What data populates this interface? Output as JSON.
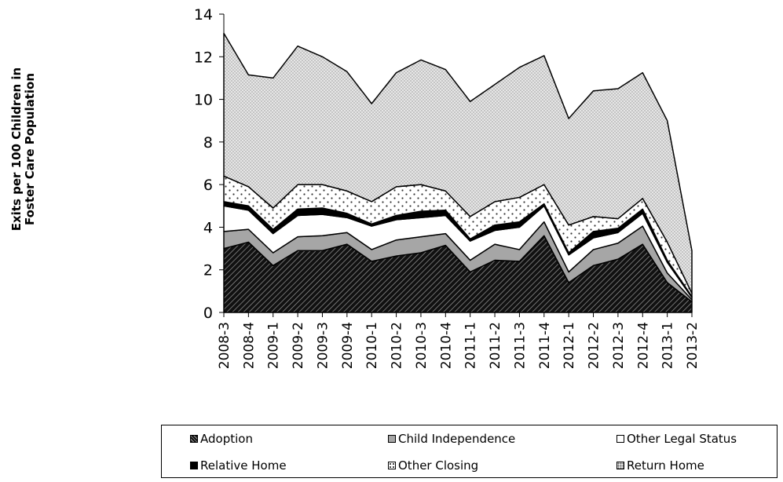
{
  "chart_data": {
    "type": "area",
    "stacked": true,
    "ylabel_lines": [
      "Exits per 100 Children in",
      "Foster Care Population"
    ],
    "ylim": [
      0,
      14
    ],
    "yticks": [
      0,
      2,
      4,
      6,
      8,
      10,
      12,
      14
    ],
    "grid": false,
    "legend_position": "bottom",
    "categories": [
      "2008-3",
      "2008-4",
      "2009-1",
      "2009-2",
      "2009-3",
      "2009-4",
      "2010-1",
      "2010-2",
      "2010-3",
      "2010-4",
      "2011-1",
      "2011-2",
      "2011-3",
      "2011-4",
      "2012-1",
      "2012-2",
      "2012-3",
      "2012-4",
      "2013-1",
      "2013-2"
    ],
    "series": [
      {
        "name": "Adoption",
        "pattern": "hatch-dark",
        "values": [
          3.0,
          3.3,
          2.2,
          2.9,
          2.9,
          3.2,
          2.4,
          2.65,
          2.8,
          3.15,
          1.9,
          2.45,
          2.4,
          3.6,
          1.4,
          2.2,
          2.5,
          3.2,
          1.4,
          0.5
        ]
      },
      {
        "name": "Child Independence",
        "pattern": "gray",
        "values": [
          0.8,
          0.6,
          0.6,
          0.65,
          0.7,
          0.55,
          0.55,
          0.75,
          0.75,
          0.55,
          0.55,
          0.75,
          0.55,
          0.65,
          0.5,
          0.75,
          0.75,
          0.85,
          0.45,
          0.1
        ]
      },
      {
        "name": "Other Legal Status",
        "pattern": "white",
        "values": [
          1.2,
          0.9,
          0.9,
          1.0,
          1.0,
          0.7,
          1.1,
          0.95,
          0.9,
          0.85,
          0.9,
          0.65,
          1.05,
          0.75,
          0.8,
          0.55,
          0.5,
          0.6,
          0.5,
          0.1
        ]
      },
      {
        "name": "Relative Home",
        "pattern": "black",
        "values": [
          0.2,
          0.2,
          0.2,
          0.3,
          0.3,
          0.2,
          0.1,
          0.2,
          0.3,
          0.25,
          0.1,
          0.25,
          0.25,
          0.1,
          0.1,
          0.3,
          0.2,
          0.2,
          0.1,
          0.05
        ]
      },
      {
        "name": "Other Closing",
        "pattern": "dots",
        "values": [
          1.2,
          0.9,
          1.0,
          1.15,
          1.1,
          1.05,
          1.05,
          1.35,
          1.25,
          0.9,
          1.05,
          1.1,
          1.15,
          0.9,
          1.3,
          0.7,
          0.45,
          0.5,
          0.85,
          0.15
        ]
      },
      {
        "name": "Return Home",
        "pattern": "stipple",
        "values": [
          6.7,
          5.25,
          6.1,
          6.5,
          6.0,
          5.6,
          4.6,
          5.35,
          5.85,
          5.7,
          5.4,
          5.5,
          6.1,
          6.05,
          5.0,
          5.9,
          6.1,
          5.9,
          5.7,
          2.0
        ]
      }
    ]
  },
  "legend": {
    "items": [
      {
        "label": "Adoption",
        "pattern": "hatch-dark"
      },
      {
        "label": "Child Independence",
        "pattern": "gray"
      },
      {
        "label": "Other Legal Status",
        "pattern": "white"
      },
      {
        "label": "Relative Home",
        "pattern": "black"
      },
      {
        "label": "Other Closing",
        "pattern": "dots"
      },
      {
        "label": "Return Home",
        "pattern": "stipple"
      }
    ]
  },
  "colors": {
    "gray": "#a6a6a6",
    "black": "#000000",
    "white": "#ffffff",
    "stipple_bg": "#e6e6e6",
    "stipple_dot": "#6e6e6e"
  }
}
